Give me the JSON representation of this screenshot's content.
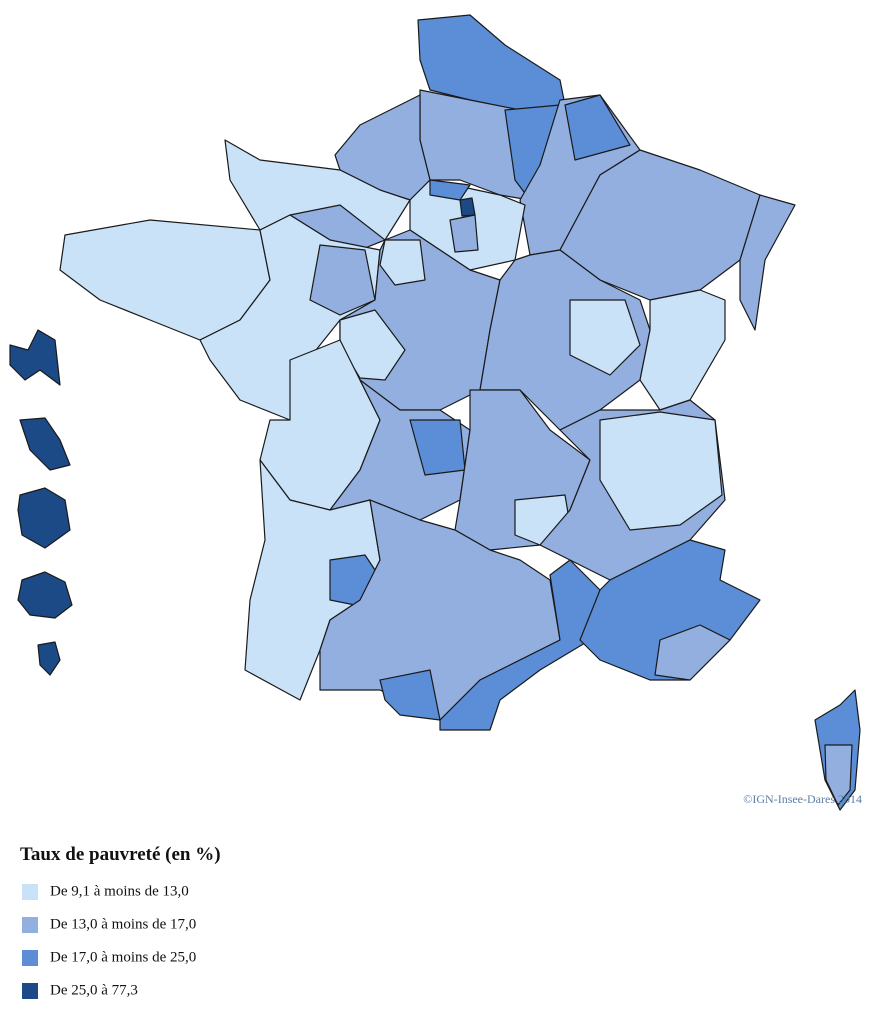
{
  "legend": {
    "title": "Taux de pauvreté (en %)",
    "items": [
      {
        "label": "De 9,1 à moins de 13,0",
        "color": "#c9e2f8"
      },
      {
        "label": "De 13,0 à moins de 17,0",
        "color": "#93afe0"
      },
      {
        "label": "De 17,0 à moins de 25,0",
        "color": "#5b8ed6"
      },
      {
        "label": "De 25,0 à 77,3",
        "color": "#1c4a86"
      }
    ]
  },
  "credit": "©IGN-Insee-Dares 2014"
}
